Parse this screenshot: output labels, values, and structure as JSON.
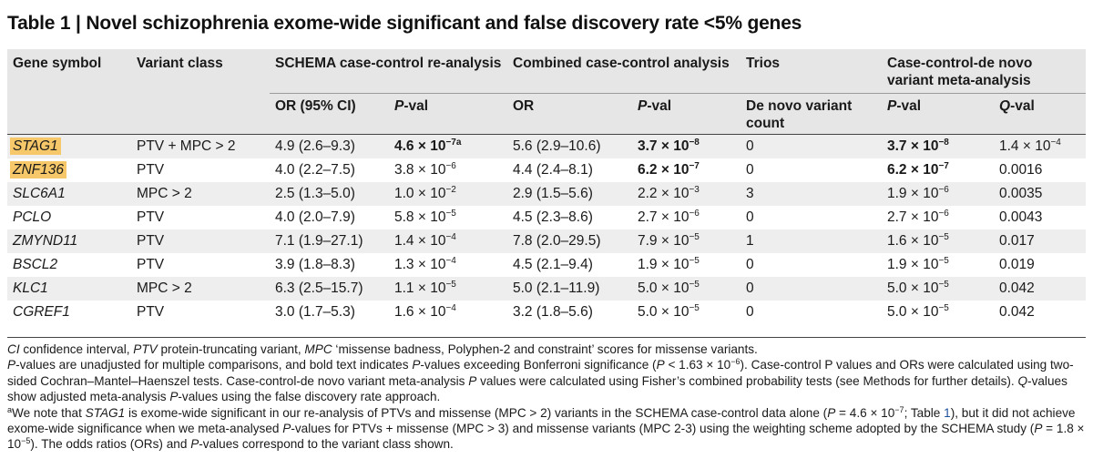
{
  "title": "Table 1 | Novel schizophrenia exome-wide significant and false discovery rate <5% genes",
  "headers": {
    "gene_symbol": "Gene symbol",
    "variant_class": "Variant class",
    "schema_group": "SCHEMA case-control re-analysis",
    "combined_group": "Combined case-control analysis",
    "trios_group": "Trios",
    "meta_group": "Case-control-de novo variant meta-analysis",
    "or_ci": "OR (95% CI)",
    "pval_p": "P",
    "pval_rest": "-val",
    "or": "OR",
    "de_novo": "De novo variant count",
    "qval_q": "Q",
    "qval_rest": "-val"
  },
  "rows": [
    {
      "gene": "STAG1",
      "highlight": true,
      "variant_class": "PTV + MPC > 2",
      "schema_or": "4.9 (2.6–9.3)",
      "schema_p_base": "4.6 × 10",
      "schema_p_exp": "−7a",
      "schema_p_bold": true,
      "comb_or": "5.6 (2.9–10.6)",
      "comb_p_base": "3.7 × 10",
      "comb_p_exp": "−8",
      "comb_p_bold": true,
      "denovo": "0",
      "meta_p_base": "3.7 × 10",
      "meta_p_exp": "−8",
      "meta_p_bold": true,
      "q_base": "1.4 × 10",
      "q_exp": "−4"
    },
    {
      "gene": "ZNF136",
      "highlight": true,
      "variant_class": "PTV",
      "schema_or": "4.0 (2.2–7.5)",
      "schema_p_base": "3.8 × 10",
      "schema_p_exp": "−6",
      "schema_p_bold": false,
      "comb_or": "4.4 (2.4–8.1)",
      "comb_p_base": "6.2 × 10",
      "comb_p_exp": "−7",
      "comb_p_bold": true,
      "denovo": "0",
      "meta_p_base": "6.2 × 10",
      "meta_p_exp": "−7",
      "meta_p_bold": true,
      "q_base": "0.0016",
      "q_exp": ""
    },
    {
      "gene": "SLC6A1",
      "highlight": false,
      "variant_class": "MPC > 2",
      "schema_or": "2.5 (1.3–5.0)",
      "schema_p_base": "1.0 × 10",
      "schema_p_exp": "−2",
      "schema_p_bold": false,
      "comb_or": "2.9 (1.5–5.6)",
      "comb_p_base": "2.2 × 10",
      "comb_p_exp": "−3",
      "comb_p_bold": false,
      "denovo": "3",
      "meta_p_base": "1.9 × 10",
      "meta_p_exp": "−6",
      "meta_p_bold": false,
      "q_base": "0.0035",
      "q_exp": ""
    },
    {
      "gene": "PCLO",
      "highlight": false,
      "variant_class": "PTV",
      "schema_or": "4.0 (2.0–7.9)",
      "schema_p_base": "5.8 × 10",
      "schema_p_exp": "−5",
      "schema_p_bold": false,
      "comb_or": "4.5 (2.3–8.6)",
      "comb_p_base": "2.7 × 10",
      "comb_p_exp": "−6",
      "comb_p_bold": false,
      "denovo": "0",
      "meta_p_base": "2.7 × 10",
      "meta_p_exp": "−6",
      "meta_p_bold": false,
      "q_base": "0.0043",
      "q_exp": ""
    },
    {
      "gene": "ZMYND11",
      "highlight": false,
      "variant_class": "PTV",
      "schema_or": "7.1 (1.9–27.1)",
      "schema_p_base": "1.4 × 10",
      "schema_p_exp": "−4",
      "schema_p_bold": false,
      "comb_or": "7.8 (2.0–29.5)",
      "comb_p_base": "7.9 × 10",
      "comb_p_exp": "−5",
      "comb_p_bold": false,
      "denovo": "1",
      "meta_p_base": "1.6 × 10",
      "meta_p_exp": "−5",
      "meta_p_bold": false,
      "q_base": "0.017",
      "q_exp": ""
    },
    {
      "gene": "BSCL2",
      "highlight": false,
      "variant_class": "PTV",
      "schema_or": "3.9 (1.8–8.3)",
      "schema_p_base": "1.3 × 10",
      "schema_p_exp": "−4",
      "schema_p_bold": false,
      "comb_or": "4.5 (2.1–9.4)",
      "comb_p_base": "1.9 × 10",
      "comb_p_exp": "−5",
      "comb_p_bold": false,
      "denovo": "0",
      "meta_p_base": "1.9 × 10",
      "meta_p_exp": "−5",
      "meta_p_bold": false,
      "q_base": "0.019",
      "q_exp": ""
    },
    {
      "gene": "KLC1",
      "highlight": false,
      "variant_class": "MPC > 2",
      "schema_or": "6.3 (2.5–15.7)",
      "schema_p_base": "1.1 × 10",
      "schema_p_exp": "−5",
      "schema_p_bold": false,
      "comb_or": "5.0 (2.1–11.9)",
      "comb_p_base": "5.0 × 10",
      "comb_p_exp": "−5",
      "comb_p_bold": false,
      "denovo": "0",
      "meta_p_base": "5.0 × 10",
      "meta_p_exp": "−5",
      "meta_p_bold": false,
      "q_base": "0.042",
      "q_exp": ""
    },
    {
      "gene": "CGREF1",
      "highlight": false,
      "variant_class": "PTV",
      "schema_or": "3.0 (1.7–5.3)",
      "schema_p_base": "1.6 × 10",
      "schema_p_exp": "−4",
      "schema_p_bold": false,
      "comb_or": "3.2 (1.8–5.6)",
      "comb_p_base": "5.0 × 10",
      "comb_p_exp": "−5",
      "comb_p_bold": false,
      "denovo": "0",
      "meta_p_base": "5.0 × 10",
      "meta_p_exp": "−5",
      "meta_p_bold": false,
      "q_base": "0.042",
      "q_exp": ""
    }
  ],
  "notes": {
    "line1": {
      "ci": "CI",
      "ci_text": " confidence interval, ",
      "ptv": "PTV",
      "ptv_text": " protein-truncating variant, ",
      "mpc": "MPC",
      "mpc_text": " ‘missense badness, Polyphen-2 and constraint’ scores for missense variants."
    },
    "line2": {
      "p1": "P",
      "t1": "-values are unadjusted for multiple comparisons, and bold text indicates ",
      "p2": "P",
      "t2": "-values exceeding Bonferroni significance (",
      "p3": "P",
      "t3": " < 1.63 × 10",
      "t3_exp": "−6",
      "t4": "). Case-control P values and ORs were calculated using two-sided Cochran–Mantel–Haenszel tests. Case-control-de novo variant meta-analysis ",
      "p4": "P",
      "t5": " values were calculated using Fisher’s combined probability tests (see Methods for further details). ",
      "q": "Q",
      "t6": "-values show adjusted meta-analysis ",
      "p5": "P",
      "t7": "-values using the false discovery rate approach."
    },
    "line3": {
      "sup": "a",
      "t1": "We note that ",
      "gene": "STAG1",
      "t2": " is exome-wide significant in our re-analysis of PTVs and missense (MPC > 2) variants in the SCHEMA case-control data alone (",
      "p1": "P",
      "t3": " = 4.6 × 10",
      "t3_exp": "−7",
      "t4": "; Table ",
      "table_link": "1",
      "t5": "), but it did not achieve exome-wide significance when we meta-analysed ",
      "p2": "P",
      "t6": "-values for PTVs + missense (MPC > 3) and missense variants (MPC 2-3) using the weighting scheme adopted by the SCHEMA study (",
      "p3": "P",
      "t7": " = 1.8 × 10",
      "t7_exp": "−5",
      "t8": "). The odds ratios (ORs) and ",
      "p4": "P",
      "t9": "-values correspond to the variant class shown."
    }
  }
}
